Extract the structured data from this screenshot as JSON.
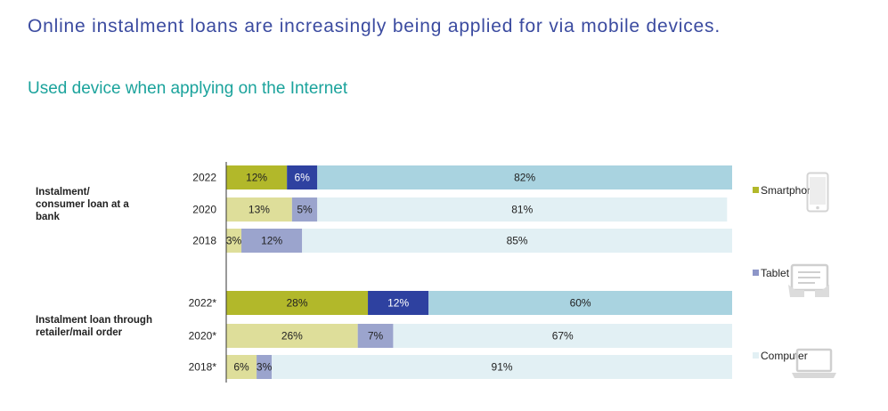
{
  "headline": "Online instalment loans are increasingly being applied for via mobile devices.",
  "subtitle": "Used device when applying on the Internet",
  "colors": {
    "smartphone": "#b2b82a",
    "tablet": "#2e41a0",
    "computer": "#a9d3e0",
    "smartphone_light": "#dede9a",
    "tablet_light": "#9ba4cd",
    "computer_light": "#e2f0f4",
    "headline": "#3b4ba0",
    "subtitle": "#1ba39c"
  },
  "legend": {
    "smartphone": "Smartphone",
    "tablet": "Tablet",
    "computer": "Computer"
  },
  "chart_data": {
    "type": "bar",
    "orientation": "horizontal",
    "stacked": true,
    "series": [
      {
        "name": "Smartphone",
        "color_key": "smartphone"
      },
      {
        "name": "Tablet",
        "color_key": "tablet"
      },
      {
        "name": "Computer",
        "color_key": "computer"
      }
    ],
    "groups": [
      {
        "label": "Instalment/\nconsumer loan at a\nbank",
        "rows": [
          {
            "year": "2022",
            "values": [
              12,
              6,
              82
            ],
            "labels": [
              "12%",
              "6%",
              "82%"
            ],
            "highlight": true
          },
          {
            "year": "2020",
            "values": [
              13,
              5,
              81
            ],
            "labels": [
              "13%",
              "5%",
              "81%"
            ],
            "highlight": false
          },
          {
            "year": "2018",
            "values": [
              3,
              12,
              85
            ],
            "labels": [
              "3%",
              "12%",
              "85%"
            ],
            "highlight": false
          }
        ]
      },
      {
        "label": "Instalment loan through\nretailer/mail order",
        "rows": [
          {
            "year": "2022*",
            "values": [
              28,
              12,
              60
            ],
            "labels": [
              "28%",
              "12%",
              "60%"
            ],
            "highlight": true
          },
          {
            "year": "2020*",
            "values": [
              26,
              7,
              67
            ],
            "labels": [
              "26%",
              "7%",
              "67%"
            ],
            "highlight": false
          },
          {
            "year": "2018*",
            "values": [
              6,
              3,
              91
            ],
            "labels": [
              "6%",
              "3%",
              "91%"
            ],
            "highlight": false
          }
        ]
      }
    ],
    "xlim": [
      0,
      100
    ]
  }
}
